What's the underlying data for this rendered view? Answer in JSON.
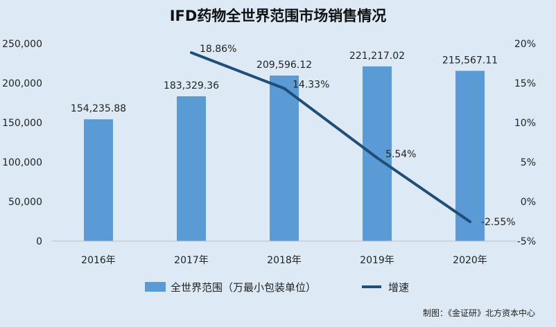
{
  "chart_data": {
    "type": "bar",
    "title": "IFD药物全世界范围市场销售情况",
    "categories": [
      "2016年",
      "2017年",
      "2018年",
      "2019年",
      "2020年"
    ],
    "series": [
      {
        "name": "全世界范围（万最小包装单位）",
        "type": "bar",
        "axis": "left",
        "color": "#5b9bd5",
        "values": [
          154235.88,
          183329.36,
          209596.12,
          221217.02,
          215567.11
        ],
        "labels": [
          "154,235.88",
          "183,329.36",
          "209,596.12",
          "221,217.02",
          "215,567.11"
        ]
      },
      {
        "name": "增速",
        "type": "line",
        "axis": "right",
        "color": "#1f4e79",
        "values": [
          null,
          18.86,
          14.33,
          5.54,
          -2.55
        ],
        "labels": [
          null,
          "18.86%",
          "14.33%",
          "5.54%",
          "-2.55%"
        ]
      }
    ],
    "y_left": {
      "lim": [
        0,
        250000
      ],
      "ticks": [
        0,
        50000,
        100000,
        150000,
        200000,
        250000
      ],
      "tick_labels": [
        "0",
        "50,000",
        "100,000",
        "150,000",
        "200,000",
        "250,000"
      ]
    },
    "y_right": {
      "lim": [
        -5,
        20
      ],
      "ticks": [
        -5,
        0,
        5,
        10,
        15,
        20
      ],
      "tick_labels": [
        "-5%",
        "0%",
        "5%",
        "10%",
        "15%",
        "20%"
      ]
    },
    "grid": false,
    "legend": "bottom"
  },
  "footer": {
    "source": "制图：《金证研》北方资本中心"
  }
}
